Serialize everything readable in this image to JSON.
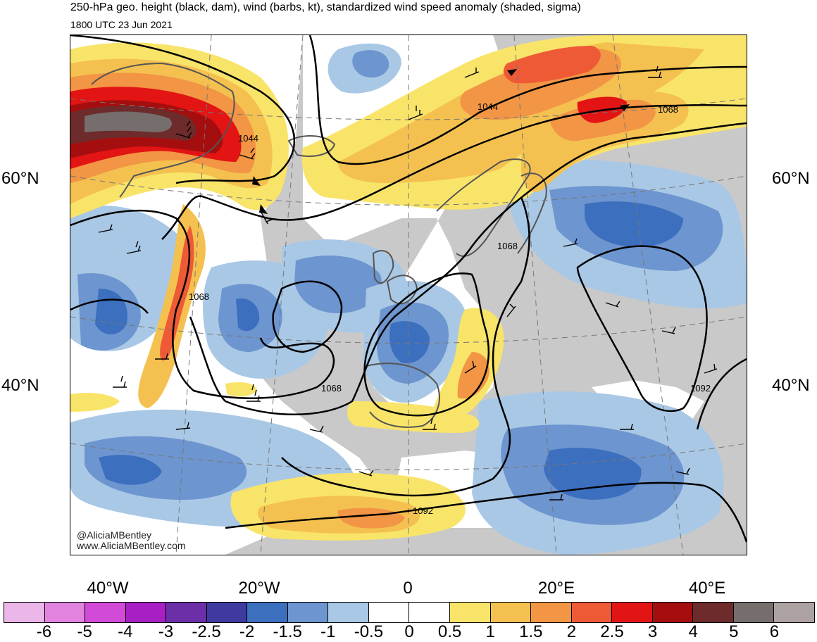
{
  "header": {
    "title": "250-hPa geo. height (black, dam), wind (barbs, kt), standardized wind speed anomaly (shaded, sigma)",
    "subtitle": "1800 UTC 23 Jun 2021"
  },
  "map": {
    "projection_note": "",
    "lat_labels": {
      "left": [
        "60°N",
        "40°N"
      ],
      "right": [
        "60°N",
        "40°N"
      ]
    },
    "lon_labels": [
      "40°W",
      "20°W",
      "0",
      "20°E",
      "40°E"
    ],
    "contour_labels": [
      "1044",
      "1044",
      "1068",
      "1068",
      "1068",
      "1068",
      "1092",
      "1092"
    ],
    "credit": {
      "handle": "@AliciaMBentley",
      "site": "www.AliciaMBentley.com"
    },
    "colors": {
      "land": "#c9c9c9",
      "ocean_neutral": "#ffffff",
      "coast": "#555555",
      "grid": "#777777"
    }
  },
  "colorbar": {
    "labels": [
      "-6",
      "-5",
      "-4",
      "-3",
      "-2.5",
      "-2",
      "-1.5",
      "-1",
      "-0.5",
      "0",
      "0.5",
      "1",
      "1.5",
      "2",
      "2.5",
      "3",
      "4",
      "5",
      "6"
    ],
    "colors": [
      "#ebb6e8",
      "#e283e0",
      "#d24ad8",
      "#a81fc4",
      "#6b2fa8",
      "#3e3aa0",
      "#3d6fbf",
      "#6d95cf",
      "#a9c8e6",
      "#ffffff",
      "#ffffff",
      "#f9e46a",
      "#f4c150",
      "#f29544",
      "#ee5a36",
      "#e31414",
      "#a50e0e",
      "#6e2b2b",
      "#766d6d",
      "#ada2a2"
    ]
  }
}
